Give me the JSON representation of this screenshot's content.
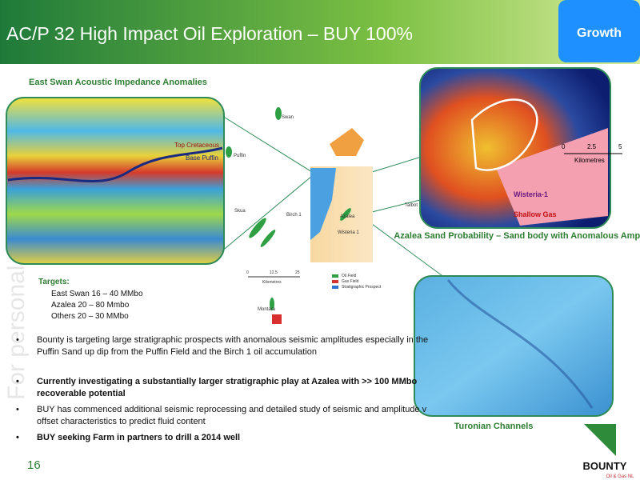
{
  "header": {
    "title": "AC/P 32 High Impact Oil Exploration – BUY 100%",
    "tag": "Growth"
  },
  "watermark": "For personal use only",
  "panels": {
    "seismic": {
      "title": "East Swan Acoustic Impedance Anomalies",
      "labels": [
        "Top Cretaceous",
        "Base Puffin"
      ]
    },
    "azalea": {
      "title": "Azalea Sand Probability – Sand body with Anomalous Amplitudes",
      "scale": [
        "0",
        "2.5",
        "5"
      ],
      "scale_unit": "Kilometres",
      "labels": [
        "Wisteria-1",
        "Shallow Gas"
      ]
    },
    "turonian": {
      "title": "Turonian Channels"
    }
  },
  "map": {
    "labels": [
      "Swan",
      "Puffin",
      "Skua",
      "Birch 1",
      "Talbot",
      "Azalea",
      "Wisteria 1",
      "Montara"
    ],
    "scale": [
      "0",
      "12.5",
      "25"
    ],
    "scale_unit": "Kilometres",
    "legend": [
      "Oil Field",
      "Gas Field",
      "Stratigraphic Prospect"
    ]
  },
  "targets": {
    "title": "Targets:",
    "items": [
      "East Swan 16 – 40 MMbo",
      "Azalea 20 – 80 Mmbo",
      "Others 20 – 30 MMbo"
    ]
  },
  "bullets": [
    "Bounty is targeting large stratigraphic prospects with anomalous seismic amplitudes especially in the Puffin Sand up dip from the Puffin Field and the Birch 1 oil accumulation",
    "Currently investigating a substantially larger stratigraphic play at Azalea with >> 100 MMbo recoverable potential",
    "BUY has commenced additional seismic reprocessing and detailed study of seismic and amplitude v offset characteristics to predict fluid content",
    "BUY seeking Farm in  partners to drill a 2014 well"
  ],
  "page_number": "16",
  "logo": {
    "name": "BOUNTY",
    "sub": "Oil & Gas NL"
  }
}
